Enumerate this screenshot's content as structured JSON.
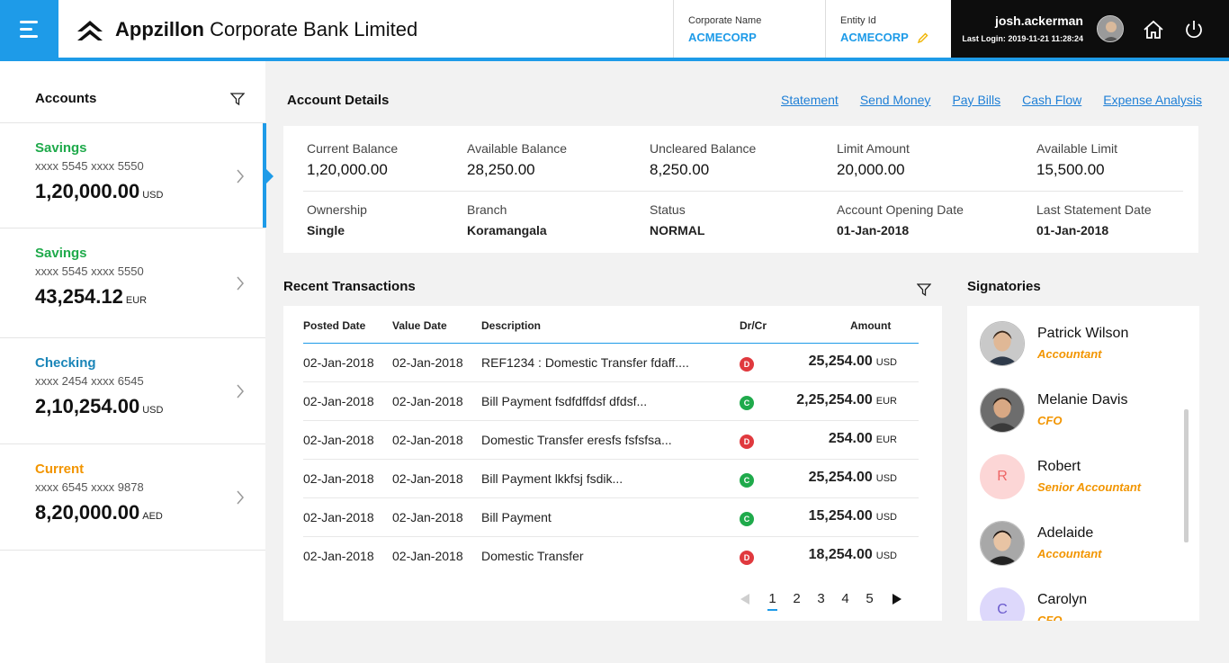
{
  "header": {
    "bank_name_bold": "Appzillon",
    "bank_name_rest": "Corporate Bank Limited",
    "corporate_name_label": "Corporate Name",
    "corporate_name_value": "ACMECORP",
    "entity_id_label": "Entity Id",
    "entity_id_value": "ACMECORP",
    "username": "josh.ackerman",
    "last_login": "Last Login: 2019-11-21 11:28:24",
    "accent_color": "#1e9be8"
  },
  "sidebar": {
    "title": "Accounts",
    "accounts": [
      {
        "type": "Savings",
        "number": "xxxx 5545 xxxx 5550",
        "balance": "1,20,000.00",
        "currency": "USD",
        "color": "#1faa4b"
      },
      {
        "type": "Savings",
        "number": "xxxx 5545 xxxx 5550",
        "balance": "43,254.12",
        "currency": "EUR",
        "color": "#1faa4b"
      },
      {
        "type": "Checking",
        "number": "xxxx 2454 xxxx 6545",
        "balance": "2,10,254.00",
        "currency": "USD",
        "color": "#1a85b8"
      },
      {
        "type": "Current",
        "number": "xxxx 6545 xxxx 9878",
        "balance": "8,20,000.00",
        "currency": "AED",
        "color": "#f29500"
      }
    ]
  },
  "account_details": {
    "title": "Account Details",
    "links": [
      "Statement",
      "Send Money",
      "Pay Bills",
      "Cash Flow",
      "Expense Analysis"
    ],
    "row1": [
      {
        "label": "Current Balance",
        "value": "1,20,000.00"
      },
      {
        "label": "Available Balance",
        "value": "28,250.00"
      },
      {
        "label": "Uncleared Balance",
        "value": "8,250.00"
      },
      {
        "label": "Limit Amount",
        "value": "20,000.00"
      },
      {
        "label": "Available Limit",
        "value": "15,500.00"
      }
    ],
    "row2": [
      {
        "label": "Ownership",
        "value": "Single"
      },
      {
        "label": "Branch",
        "value": "Koramangala"
      },
      {
        "label": "Status",
        "value": "NORMAL"
      },
      {
        "label": "Account Opening Date",
        "value": "01-Jan-2018"
      },
      {
        "label": "Last Statement Date",
        "value": "01-Jan-2018"
      }
    ]
  },
  "transactions": {
    "title": "Recent Transactions",
    "columns": {
      "posted": "Posted Date",
      "value": "Value Date",
      "desc": "Description",
      "drcr": "Dr/Cr",
      "amount": "Amount"
    },
    "rows": [
      {
        "posted": "02-Jan-2018",
        "value": "02-Jan-2018",
        "desc": "REF1234 : Domestic Transfer fdaff....",
        "drcr": "D",
        "amount": "25,254.00",
        "currency": "USD"
      },
      {
        "posted": "02-Jan-2018",
        "value": "02-Jan-2018",
        "desc": "Bill Payment fsdfdffdsf dfdsf...",
        "drcr": "C",
        "amount": "2,25,254.00",
        "currency": "EUR"
      },
      {
        "posted": "02-Jan-2018",
        "value": "02-Jan-2018",
        "desc": "Domestic Transfer eresfs fsfsfsa...",
        "drcr": "D",
        "amount": "254.00",
        "currency": "EUR"
      },
      {
        "posted": "02-Jan-2018",
        "value": "02-Jan-2018",
        "desc": "Bill Payment lkkfsj fsdik...",
        "drcr": "C",
        "amount": "25,254.00",
        "currency": "USD"
      },
      {
        "posted": "02-Jan-2018",
        "value": "02-Jan-2018",
        "desc": "Bill Payment",
        "drcr": "C",
        "amount": "15,254.00",
        "currency": "USD"
      },
      {
        "posted": "02-Jan-2018",
        "value": "02-Jan-2018",
        "desc": "Domestic Transfer",
        "drcr": "D",
        "amount": "18,254.00",
        "currency": "USD"
      }
    ],
    "pages": [
      "1",
      "2",
      "3",
      "4",
      "5"
    ],
    "current_page": "1",
    "debit_color": "#e0393e",
    "credit_color": "#1faa4b"
  },
  "signatories": {
    "title": "Signatories",
    "people": [
      {
        "name": "Patrick Wilson",
        "role": "Accountant",
        "initial": "",
        "avatar": "photo"
      },
      {
        "name": "Melanie Davis",
        "role": "CFO",
        "initial": "",
        "avatar": "photo"
      },
      {
        "name": "Robert",
        "role": "Senior Accountant",
        "initial": "R",
        "avatar": "initial",
        "bg": "#fcd6d6",
        "fg": "#e66"
      },
      {
        "name": "Adelaide",
        "role": "Accountant",
        "initial": "",
        "avatar": "photo"
      },
      {
        "name": "Carolyn",
        "role": "CFO",
        "initial": "C",
        "avatar": "initial",
        "bg": "#ddd8fb",
        "fg": "#6a5acd"
      }
    ]
  }
}
